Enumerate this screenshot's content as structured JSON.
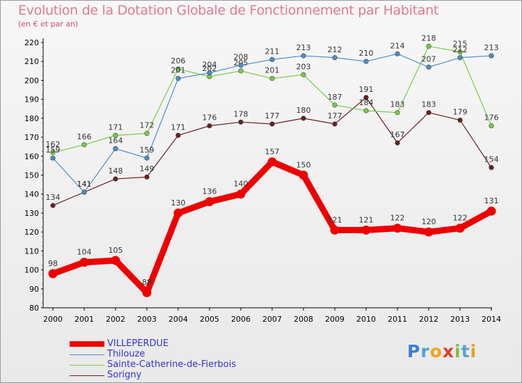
{
  "title": "Evolution de la Dotation Globale de Fonctionnement par Habitant",
  "subtitle": "(en € et par an)",
  "logo": {
    "letters": [
      {
        "char": "P",
        "color": "#3b7dd8"
      },
      {
        "char": "r",
        "color": "#4aa4e0"
      },
      {
        "char": "o",
        "color": "#f2a31b"
      },
      {
        "char": "x",
        "color": "#e23a2a"
      },
      {
        "char": "i",
        "color": "#7cbf3a"
      },
      {
        "char": "t",
        "color": "#5aa0d8"
      },
      {
        "char": "i",
        "color": "#e8a020"
      }
    ]
  },
  "chart_data": {
    "type": "line",
    "x": [
      "2000",
      "2001",
      "2002",
      "2003",
      "2004",
      "2005",
      "2006",
      "2007",
      "2008",
      "2009",
      "2010",
      "2011",
      "2012",
      "2013",
      "2014"
    ],
    "ylim": [
      80,
      220
    ],
    "yticks": [
      80,
      90,
      100,
      110,
      120,
      130,
      140,
      150,
      160,
      170,
      180,
      190,
      200,
      210,
      220
    ],
    "grid": false,
    "legend_position": "bottom-left",
    "series": [
      {
        "name": "VILLEPERDUE",
        "color": "#ee0000",
        "values": [
          98,
          104,
          105,
          88,
          130,
          136,
          140,
          157,
          150,
          121,
          121,
          122,
          120,
          122,
          131
        ]
      },
      {
        "name": "Thilouze",
        "color": "#4a8ec8",
        "values": [
          159,
          141,
          164,
          159,
          201,
          204,
          208,
          211,
          213,
          212,
          210,
          214,
          207,
          212,
          213
        ]
      },
      {
        "name": "Sainte-Catherine-de-Fierbois",
        "color": "#77cc44",
        "values": [
          162,
          166,
          171,
          172,
          206,
          202,
          205,
          201,
          203,
          187,
          184,
          183,
          218,
          215,
          176
        ]
      },
      {
        "name": "Sorigny",
        "color": "#6b1f1f",
        "values": [
          134,
          141,
          148,
          149,
          171,
          176,
          178,
          177,
          180,
          177,
          191,
          167,
          183,
          179,
          154
        ]
      }
    ]
  }
}
